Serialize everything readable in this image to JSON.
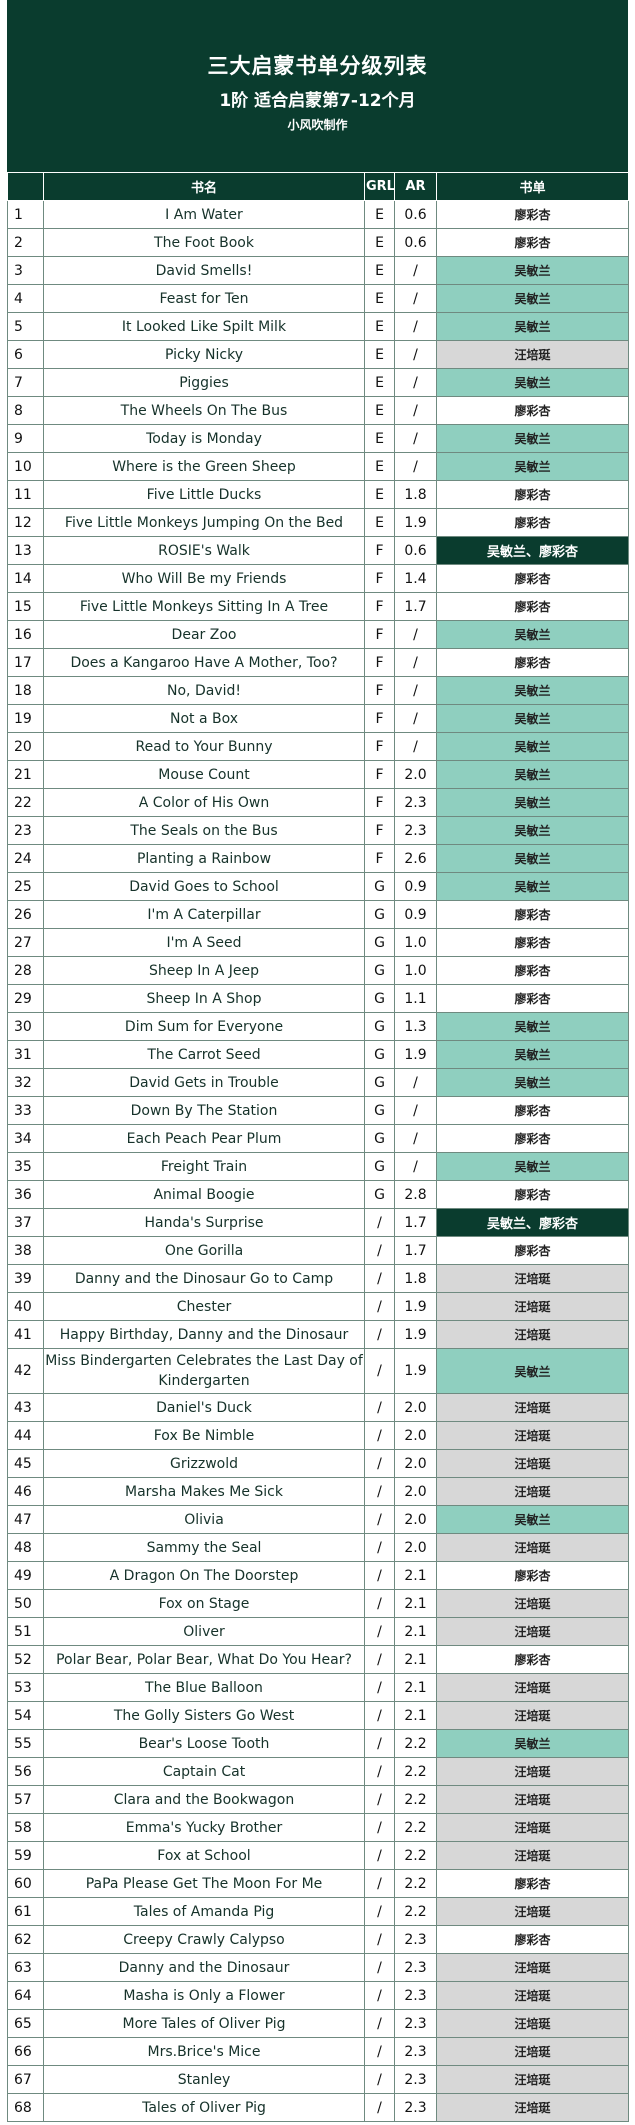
{
  "title": "三大启蒙书单分级列表",
  "subtitle": "1阶 适合启蒙第7-12个月",
  "author": "小风吹制作",
  "columns": [
    "书名",
    "GRL",
    "AR",
    "书单"
  ],
  "colors": {
    "header_bg": "#0a3c2e",
    "teal": "#8fcfbf",
    "gray": "#d7d7d7"
  },
  "rows": [
    {
      "no": "1",
      "name": "I Am Water",
      "grl": "E",
      "ar": "0.6",
      "list": "廖彩杏",
      "style": "white"
    },
    {
      "no": "2",
      "name": "The Foot Book",
      "grl": "E",
      "ar": "0.6",
      "list": "廖彩杏",
      "style": "white"
    },
    {
      "no": "3",
      "name": "David Smells!",
      "grl": "E",
      "ar": "/",
      "list": "吴敏兰",
      "style": "teal"
    },
    {
      "no": "4",
      "name": "Feast for Ten",
      "grl": "E",
      "ar": "/",
      "list": "吴敏兰",
      "style": "teal"
    },
    {
      "no": "5",
      "name": "It Looked Like Spilt Milk",
      "grl": "E",
      "ar": "/",
      "list": "吴敏兰",
      "style": "teal"
    },
    {
      "no": "6",
      "name": "Picky Nicky",
      "grl": "E",
      "ar": "/",
      "list": "汪培珽",
      "style": "gray"
    },
    {
      "no": "7",
      "name": "Piggies",
      "grl": "E",
      "ar": "/",
      "list": "吴敏兰",
      "style": "teal"
    },
    {
      "no": "8",
      "name": "The Wheels On The Bus",
      "grl": "E",
      "ar": "/",
      "list": "廖彩杏",
      "style": "white"
    },
    {
      "no": "9",
      "name": "Today is Monday",
      "grl": "E",
      "ar": "/",
      "list": "吴敏兰",
      "style": "teal"
    },
    {
      "no": "10",
      "name": "Where is the Green Sheep",
      "grl": "E",
      "ar": "/",
      "list": "吴敏兰",
      "style": "teal"
    },
    {
      "no": "11",
      "name": "Five Little Ducks",
      "grl": "E",
      "ar": "1.8",
      "list": "廖彩杏",
      "style": "white"
    },
    {
      "no": "12",
      "name": "Five Little Monkeys Jumping On the Bed",
      "grl": "E",
      "ar": "1.9",
      "list": "廖彩杏",
      "style": "white"
    },
    {
      "no": "13",
      "name": "ROSIE's Walk",
      "grl": "F",
      "ar": "0.6",
      "list": "吴敏兰、廖彩杏",
      "style": "dark"
    },
    {
      "no": "14",
      "name": "Who Will Be my Friends",
      "grl": "F",
      "ar": "1.4",
      "list": "廖彩杏",
      "style": "white"
    },
    {
      "no": "15",
      "name": "Five Little Monkeys Sitting In A Tree",
      "grl": "F",
      "ar": "1.7",
      "list": "廖彩杏",
      "style": "white"
    },
    {
      "no": "16",
      "name": "Dear Zoo",
      "grl": "F",
      "ar": "/",
      "list": "吴敏兰",
      "style": "teal"
    },
    {
      "no": "17",
      "name": "Does a Kangaroo Have A Mother, Too?",
      "grl": "F",
      "ar": "/",
      "list": "廖彩杏",
      "style": "white"
    },
    {
      "no": "18",
      "name": "No, David!",
      "grl": "F",
      "ar": "/",
      "list": "吴敏兰",
      "style": "teal"
    },
    {
      "no": "19",
      "name": "Not a Box",
      "grl": "F",
      "ar": "/",
      "list": "吴敏兰",
      "style": "teal"
    },
    {
      "no": "20",
      "name": "Read to Your Bunny",
      "grl": "F",
      "ar": "/",
      "list": "吴敏兰",
      "style": "teal"
    },
    {
      "no": "21",
      "name": "Mouse Count",
      "grl": "F",
      "ar": "2.0",
      "list": "吴敏兰",
      "style": "teal"
    },
    {
      "no": "22",
      "name": "A Color of His Own",
      "grl": "F",
      "ar": "2.3",
      "list": "吴敏兰",
      "style": "teal"
    },
    {
      "no": "23",
      "name": "The Seals on the Bus",
      "grl": "F",
      "ar": "2.3",
      "list": "吴敏兰",
      "style": "teal"
    },
    {
      "no": "24",
      "name": "Planting a Rainbow",
      "grl": "F",
      "ar": "2.6",
      "list": "吴敏兰",
      "style": "teal"
    },
    {
      "no": "25",
      "name": "David Goes to School",
      "grl": "G",
      "ar": "0.9",
      "list": "吴敏兰",
      "style": "teal"
    },
    {
      "no": "26",
      "name": "I'm A Caterpillar",
      "grl": "G",
      "ar": "0.9",
      "list": "廖彩杏",
      "style": "white"
    },
    {
      "no": "27",
      "name": "I'm A Seed",
      "grl": "G",
      "ar": "1.0",
      "list": "廖彩杏",
      "style": "white"
    },
    {
      "no": "28",
      "name": "Sheep In A Jeep",
      "grl": "G",
      "ar": "1.0",
      "list": "廖彩杏",
      "style": "white"
    },
    {
      "no": "29",
      "name": "Sheep In A Shop",
      "grl": "G",
      "ar": "1.1",
      "list": "廖彩杏",
      "style": "white"
    },
    {
      "no": "30",
      "name": "Dim Sum for Everyone",
      "grl": "G",
      "ar": "1.3",
      "list": "吴敏兰",
      "style": "teal"
    },
    {
      "no": "31",
      "name": "The Carrot Seed",
      "grl": "G",
      "ar": "1.9",
      "list": "吴敏兰",
      "style": "teal"
    },
    {
      "no": "32",
      "name": "David Gets in Trouble",
      "grl": "G",
      "ar": "/",
      "list": "吴敏兰",
      "style": "teal"
    },
    {
      "no": "33",
      "name": "Down By The Station",
      "grl": "G",
      "ar": "/",
      "list": "廖彩杏",
      "style": "white"
    },
    {
      "no": "34",
      "name": "Each Peach Pear Plum",
      "grl": "G",
      "ar": "/",
      "list": "廖彩杏",
      "style": "white"
    },
    {
      "no": "35",
      "name": "Freight Train",
      "grl": "G",
      "ar": "/",
      "list": "吴敏兰",
      "style": "teal"
    },
    {
      "no": "36",
      "name": "Animal Boogie",
      "grl": "G",
      "ar": "2.8",
      "list": "廖彩杏",
      "style": "white"
    },
    {
      "no": "37",
      "name": "Handa's Surprise",
      "grl": "/",
      "ar": "1.7",
      "list": "吴敏兰、廖彩杏",
      "style": "dark"
    },
    {
      "no": "38",
      "name": "One Gorilla",
      "grl": "/",
      "ar": "1.7",
      "list": "廖彩杏",
      "style": "white"
    },
    {
      "no": "39",
      "name": "Danny and the Dinosaur Go to Camp",
      "grl": "/",
      "ar": "1.8",
      "list": "汪培珽",
      "style": "gray"
    },
    {
      "no": "40",
      "name": "Chester",
      "grl": "/",
      "ar": "1.9",
      "list": "汪培珽",
      "style": "gray"
    },
    {
      "no": "41",
      "name": "Happy Birthday, Danny and the Dinosaur",
      "grl": "/",
      "ar": "1.9",
      "list": "汪培珽",
      "style": "gray"
    },
    {
      "no": "42",
      "name": "Miss Bindergarten Celebrates the Last Day of Kindergarten",
      "grl": "/",
      "ar": "1.9",
      "list": "吴敏兰",
      "style": "teal",
      "tall": true
    },
    {
      "no": "43",
      "name": "Daniel's Duck",
      "grl": "/",
      "ar": "2.0",
      "list": "汪培珽",
      "style": "gray"
    },
    {
      "no": "44",
      "name": "Fox Be Nimble",
      "grl": "/",
      "ar": "2.0",
      "list": "汪培珽",
      "style": "gray"
    },
    {
      "no": "45",
      "name": "Grizzwold",
      "grl": "/",
      "ar": "2.0",
      "list": "汪培珽",
      "style": "gray"
    },
    {
      "no": "46",
      "name": "Marsha Makes Me Sick",
      "grl": "/",
      "ar": "2.0",
      "list": "汪培珽",
      "style": "gray"
    },
    {
      "no": "47",
      "name": "Olivia",
      "grl": "/",
      "ar": "2.0",
      "list": "吴敏兰",
      "style": "teal"
    },
    {
      "no": "48",
      "name": "Sammy the Seal",
      "grl": "/",
      "ar": "2.0",
      "list": "汪培珽",
      "style": "gray"
    },
    {
      "no": "49",
      "name": "A Dragon On The Doorstep",
      "grl": "/",
      "ar": "2.1",
      "list": "廖彩杏",
      "style": "white"
    },
    {
      "no": "50",
      "name": "Fox on Stage",
      "grl": "/",
      "ar": "2.1",
      "list": "汪培珽",
      "style": "gray"
    },
    {
      "no": "51",
      "name": "Oliver",
      "grl": "/",
      "ar": "2.1",
      "list": "汪培珽",
      "style": "gray"
    },
    {
      "no": "52",
      "name": "Polar Bear, Polar Bear, What Do You Hear?",
      "grl": "/",
      "ar": "2.1",
      "list": "廖彩杏",
      "style": "white"
    },
    {
      "no": "53",
      "name": "The Blue Balloon",
      "grl": "/",
      "ar": "2.1",
      "list": "汪培珽",
      "style": "gray"
    },
    {
      "no": "54",
      "name": "The Golly Sisters Go West",
      "grl": "/",
      "ar": "2.1",
      "list": "汪培珽",
      "style": "gray"
    },
    {
      "no": "55",
      "name": "Bear's Loose Tooth",
      "grl": "/",
      "ar": "2.2",
      "list": "吴敏兰",
      "style": "teal"
    },
    {
      "no": "56",
      "name": "Captain Cat",
      "grl": "/",
      "ar": "2.2",
      "list": "汪培珽",
      "style": "gray"
    },
    {
      "no": "57",
      "name": "Clara and the Bookwagon",
      "grl": "/",
      "ar": "2.2",
      "list": "汪培珽",
      "style": "gray"
    },
    {
      "no": "58",
      "name": "Emma's Yucky Brother",
      "grl": "/",
      "ar": "2.2",
      "list": "汪培珽",
      "style": "gray"
    },
    {
      "no": "59",
      "name": "Fox at School",
      "grl": "/",
      "ar": "2.2",
      "list": "汪培珽",
      "style": "gray"
    },
    {
      "no": "60",
      "name": "PaPa Please Get The Moon For Me",
      "grl": "/",
      "ar": "2.2",
      "list": "廖彩杏",
      "style": "white"
    },
    {
      "no": "61",
      "name": "Tales of Amanda Pig",
      "grl": "/",
      "ar": "2.2",
      "list": "汪培珽",
      "style": "gray"
    },
    {
      "no": "62",
      "name": "Creepy Crawly Calypso",
      "grl": "/",
      "ar": "2.3",
      "list": "廖彩杏",
      "style": "white"
    },
    {
      "no": "63",
      "name": "Danny and the Dinosaur",
      "grl": "/",
      "ar": "2.3",
      "list": "汪培珽",
      "style": "gray"
    },
    {
      "no": "64",
      "name": "Masha is Only a Flower",
      "grl": "/",
      "ar": "2.3",
      "list": "汪培珽",
      "style": "gray"
    },
    {
      "no": "65",
      "name": "More Tales of Oliver Pig",
      "grl": "/",
      "ar": "2.3",
      "list": "汪培珽",
      "style": "gray"
    },
    {
      "no": "66",
      "name": "Mrs.Brice's Mice",
      "grl": "/",
      "ar": "2.3",
      "list": "汪培珽",
      "style": "gray"
    },
    {
      "no": "67",
      "name": "Stanley",
      "grl": "/",
      "ar": "2.3",
      "list": "汪培珽",
      "style": "gray"
    },
    {
      "no": "68",
      "name": "Tales of Oliver Pig",
      "grl": "/",
      "ar": "2.3",
      "list": "汪培珽",
      "style": "gray"
    }
  ]
}
